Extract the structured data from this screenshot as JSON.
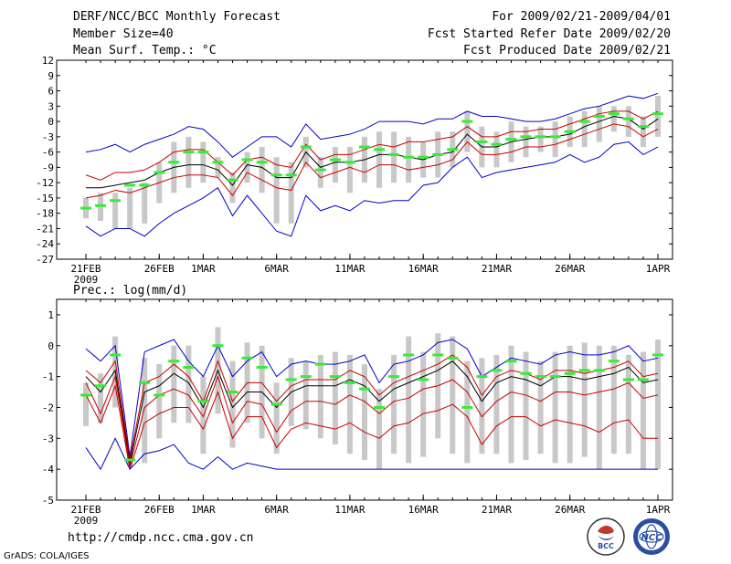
{
  "header": {
    "title": "DERF/NCC/BCC Monthly Forecast",
    "member_size": "Member Size=40",
    "variable": "Mean Surf. Temp.: °C",
    "forecast_period": "For 2009/02/21-2009/04/01",
    "start_date": "Fcst Started Refer Date 2009/02/20",
    "produced_date": "Fcst Produced Date 2009/02/21"
  },
  "footer": {
    "url": "http://cmdp.ncc.cma.gov.cn",
    "grads_credit": "GrADS: COLA/IGES",
    "logo_bcc": "BCC",
    "logo_ncc": "NCC"
  },
  "colors": {
    "ensemble_bar": "#c8c8c8",
    "max_min": "#0000cc",
    "spread": "#cc0000",
    "mean": "#000000",
    "median": "#33ee33"
  },
  "chart_data": [
    {
      "type": "line",
      "name": "Mean Surface Temperature",
      "ylabel": "Mean Surf. Temp.: °C",
      "ylim": [
        -27,
        12
      ],
      "yticks": [
        12,
        9,
        6,
        3,
        0,
        -3,
        -6,
        -9,
        -12,
        -15,
        -18,
        -21,
        -24,
        -27
      ],
      "xticks": [
        {
          "day": 0,
          "label": "21FEB",
          "sublabel": "2009"
        },
        {
          "day": 5,
          "label": "26FEB"
        },
        {
          "day": 8,
          "label": "1MAR"
        },
        {
          "day": 13,
          "label": "6MAR"
        },
        {
          "day": 18,
          "label": "11MAR"
        },
        {
          "day": 23,
          "label": "16MAR"
        },
        {
          "day": 28,
          "label": "21MAR"
        },
        {
          "day": 33,
          "label": "26MAR"
        },
        {
          "day": 39,
          "label": "1APR"
        }
      ],
      "days": 40,
      "series": [
        {
          "name": "max",
          "values": [
            -6,
            -5.5,
            -4.5,
            -6,
            -4.5,
            -3.5,
            -2.5,
            -1,
            -1.5,
            -4,
            -7,
            -5,
            -3,
            -3,
            -5,
            -0.5,
            -3.5,
            -3,
            -2.5,
            -1.5,
            0,
            0,
            0,
            -0.5,
            0.5,
            0.5,
            2,
            1,
            1,
            0.5,
            0,
            0,
            0.5,
            1.5,
            2.5,
            3,
            4,
            5,
            4.5,
            5.5,
            6.5
          ]
        },
        {
          "name": "upper",
          "values": [
            -10.5,
            -11.5,
            -10,
            -10,
            -9.5,
            -8,
            -6,
            -5.5,
            -5.5,
            -8,
            -10.5,
            -7.5,
            -7,
            -8.5,
            -9,
            -4.5,
            -7.5,
            -6.5,
            -6.5,
            -5.5,
            -4.5,
            -5,
            -4,
            -4,
            -3.5,
            -3,
            -1,
            -3,
            -3,
            -2,
            -2,
            -1.5,
            -1.5,
            -0.5,
            0.5,
            1.5,
            2,
            2,
            0.5,
            2,
            3
          ]
        },
        {
          "name": "mean",
          "values": [
            -13,
            -13,
            -12.5,
            -12,
            -11.5,
            -10,
            -9,
            -8.5,
            -8.5,
            -9.5,
            -12.5,
            -8.5,
            -9,
            -11,
            -11,
            -6,
            -9,
            -8,
            -8,
            -7.5,
            -6.5,
            -6.5,
            -7,
            -7.5,
            -6.5,
            -6,
            -2.5,
            -5,
            -5,
            -4,
            -3.5,
            -3,
            -3,
            -2.5,
            -1,
            0,
            1,
            0.5,
            -1.5,
            0.5,
            1.5
          ]
        },
        {
          "name": "lower",
          "values": [
            -15,
            -14.5,
            -13.5,
            -14,
            -13,
            -12,
            -11,
            -10.5,
            -10.5,
            -11,
            -14.5,
            -10,
            -11.5,
            -13,
            -13.5,
            -8,
            -11,
            -10,
            -9,
            -10,
            -8.5,
            -8.5,
            -9.5,
            -9,
            -8.5,
            -7.5,
            -4,
            -6.5,
            -6.5,
            -6,
            -5,
            -5,
            -4.5,
            -3.5,
            -2.5,
            -1.5,
            -0.5,
            -1,
            -3,
            -1.5,
            -0.5
          ]
        },
        {
          "name": "min",
          "values": [
            -20.5,
            -22.5,
            -21,
            -21,
            -22.5,
            -20,
            -18,
            -16.5,
            -15,
            -13,
            -18.5,
            -14.5,
            -18,
            -21.5,
            -22.5,
            -14.5,
            -17.5,
            -16.5,
            -17.5,
            -15.5,
            -16,
            -15.5,
            -15.5,
            -12.5,
            -12,
            -9,
            -7,
            -11,
            -10,
            -9.5,
            -9,
            -8.5,
            -8,
            -6.5,
            -8,
            -7,
            -4.5,
            -4,
            -6.5,
            -5,
            -5
          ]
        },
        {
          "name": "median",
          "values": [
            -17,
            -16.5,
            -15.5,
            -12.5,
            -12.5,
            -10,
            -8,
            -6,
            -6,
            -8,
            -11.5,
            -7.5,
            -8,
            -10.5,
            -10.5,
            -5,
            -9.5,
            -7.5,
            -8,
            -5,
            -5.5,
            -6.5,
            -7,
            -7,
            -6.5,
            -5.5,
            0,
            -4,
            -4.5,
            -3.5,
            -3,
            -3,
            -3,
            -2,
            0,
            1,
            1.5,
            0.5,
            -1,
            1.5,
            3
          ]
        }
      ],
      "box_low": [
        -19,
        -19.5,
        -21,
        -21,
        -20,
        -16,
        -14,
        -13,
        -12,
        -11,
        -16,
        -12,
        -14,
        -20,
        -20,
        -9,
        -13,
        -12,
        -14,
        -12,
        -13,
        -12,
        -12,
        -11,
        -11,
        -9,
        -6,
        -9,
        -9,
        -8,
        -7,
        -6,
        -7,
        -5,
        -5,
        -4,
        -2,
        -3,
        -5,
        -3,
        -3
      ],
      "box_high": [
        -15,
        -14,
        -14,
        -13,
        -12,
        -8,
        -4,
        -3,
        -4,
        -7,
        -10,
        -6,
        -5,
        -7,
        -8,
        -3,
        -7,
        -5,
        -5,
        -3,
        -2,
        -2,
        -3,
        -4,
        -2,
        -2,
        2,
        -1,
        -2,
        0,
        -1,
        -1,
        0,
        1,
        2,
        3,
        3,
        3,
        1,
        5,
        6
      ]
    },
    {
      "type": "line",
      "name": "Precipitation",
      "ylabel": "Prec.: log(mm/d)",
      "ylim": [
        -5,
        1.5
      ],
      "yticks": [
        1,
        0,
        -1,
        -2,
        -3,
        -4,
        -5
      ],
      "xticks": [
        {
          "day": 0,
          "label": "21FEB",
          "sublabel": "2009"
        },
        {
          "day": 5,
          "label": "26FEB"
        },
        {
          "day": 8,
          "label": "1MAR"
        },
        {
          "day": 13,
          "label": "6MAR"
        },
        {
          "day": 18,
          "label": "11MAR"
        },
        {
          "day": 23,
          "label": "16MAR"
        },
        {
          "day": 28,
          "label": "21MAR"
        },
        {
          "day": 33,
          "label": "26MAR"
        },
        {
          "day": 39,
          "label": "1APR"
        }
      ],
      "days": 40,
      "series": [
        {
          "name": "max",
          "values": [
            -0.1,
            -0.5,
            0,
            -3.6,
            -0.2,
            0,
            0.2,
            -0.5,
            -1,
            0,
            -1,
            -0.5,
            -0.2,
            -1,
            -0.6,
            -0.5,
            -0.6,
            -0.6,
            -0.5,
            -0.3,
            -1.2,
            -0.6,
            -0.5,
            -0.3,
            0.1,
            0.2,
            -0.1,
            -1,
            -0.7,
            -0.4,
            -0.5,
            -0.6,
            -0.3,
            -0.2,
            -0.3,
            -0.3,
            -0.2,
            0,
            -0.5,
            -0.4,
            0.3
          ]
        },
        {
          "name": "upper",
          "values": [
            -0.8,
            -1.2,
            -0.5,
            -3.7,
            -1.2,
            -1,
            -0.6,
            -1,
            -1.8,
            -0.5,
            -1.8,
            -1.2,
            -1.2,
            -1.8,
            -1.3,
            -1.1,
            -1.1,
            -1.1,
            -0.8,
            -1,
            -1.6,
            -1.2,
            -1,
            -0.8,
            -0.6,
            -0.3,
            -0.7,
            -1.6,
            -1,
            -0.8,
            -0.9,
            -1.1,
            -0.8,
            -0.8,
            -0.9,
            -0.8,
            -0.7,
            -0.5,
            -1,
            -0.9,
            -0.1
          ]
        },
        {
          "name": "mean",
          "values": [
            -1,
            -1.5,
            -0.8,
            -3.8,
            -1.5,
            -1.3,
            -0.9,
            -1.2,
            -2,
            -0.8,
            -2,
            -1.5,
            -1.5,
            -2,
            -1.5,
            -1.3,
            -1.3,
            -1.3,
            -1.1,
            -1.3,
            -1.8,
            -1.4,
            -1.2,
            -1,
            -0.8,
            -0.5,
            -1,
            -1.8,
            -1.2,
            -1,
            -1.1,
            -1.3,
            -1,
            -1,
            -1.1,
            -1,
            -0.9,
            -0.7,
            -1.2,
            -1.1,
            -0.4
          ]
        },
        {
          "name": "lower",
          "values": [
            -1.2,
            -2.2,
            -1,
            -3.9,
            -2,
            -1.6,
            -1.4,
            -1.6,
            -2.3,
            -1,
            -2.5,
            -1.8,
            -1.9,
            -2.8,
            -2.1,
            -1.8,
            -1.8,
            -1.9,
            -1.6,
            -1.8,
            -2.2,
            -1.8,
            -1.7,
            -1.4,
            -1.3,
            -1.1,
            -1.5,
            -2.3,
            -1.8,
            -1.5,
            -1.6,
            -1.8,
            -1.5,
            -1.5,
            -1.6,
            -1.5,
            -1.4,
            -1.2,
            -1.7,
            -1.6,
            -0.9
          ]
        },
        {
          "name": "lower2",
          "values": [
            -1.6,
            -2.5,
            -1.3,
            -4,
            -2.5,
            -2.2,
            -2,
            -2,
            -2.7,
            -1.5,
            -3,
            -2.3,
            -2.3,
            -3.3,
            -2.7,
            -2.5,
            -2.6,
            -2.7,
            -2.5,
            -2.8,
            -3,
            -2.6,
            -2.5,
            -2.2,
            -2.1,
            -1.9,
            -2.3,
            -3.2,
            -2.6,
            -2.3,
            -2.3,
            -2.6,
            -2.4,
            -2.5,
            -2.6,
            -2.8,
            -2.5,
            -2.4,
            -3,
            -3,
            -2.4
          ]
        },
        {
          "name": "min",
          "values": [
            -3.3,
            -4,
            -3,
            -4,
            -3.5,
            -3.4,
            -3.2,
            -3.8,
            -4,
            -3.6,
            -4,
            -3.8,
            -3.9,
            -4,
            -4,
            -4,
            -4,
            -4,
            -4,
            -4,
            -4,
            -4,
            -4,
            -4,
            -4,
            -4,
            -4,
            -4,
            -4,
            -4,
            -4,
            -4,
            -4,
            -4,
            -4,
            -4,
            -4,
            -4,
            -4,
            -4,
            -4
          ]
        },
        {
          "name": "median",
          "values": [
            -1.6,
            -1.3,
            -0.3,
            -3.7,
            -1.2,
            -1.6,
            -0.5,
            -0.7,
            -1.8,
            0,
            -1.5,
            -0.4,
            -0.7,
            -1.9,
            -1.1,
            -1,
            -0.6,
            -1,
            -1.2,
            -1.4,
            -2,
            -1,
            -0.3,
            -1.1,
            -0.3,
            -0.4,
            -2,
            -1,
            -0.8,
            -0.5,
            -0.9,
            -1,
            -1,
            -0.9,
            -0.8,
            -0.8,
            -0.5,
            -1.1,
            -1.1,
            -0.3,
            -0.3
          ]
        }
      ],
      "box_low": [
        -2.6,
        -2.5,
        -2,
        -3.9,
        -3.8,
        -3,
        -2.5,
        -2.5,
        -3.5,
        -2.2,
        -3.3,
        -2.5,
        -3,
        -3.5,
        -2.6,
        -2.7,
        -3,
        -3.2,
        -3.5,
        -3.7,
        -4,
        -3.5,
        -3.8,
        -3.6,
        -3,
        -3.5,
        -3.8,
        -3.5,
        -3.5,
        -3.8,
        -3.7,
        -3.5,
        -3.8,
        -3.8,
        -3.6,
        -4,
        -3.5,
        -3.5,
        -4,
        -4,
        -3.5
      ],
      "box_high": [
        -1.2,
        -0.9,
        0.3,
        -3.4,
        -0.4,
        -0.6,
        0,
        0,
        -1,
        0.6,
        -0.5,
        0.1,
        0,
        -1.2,
        -0.4,
        -0.5,
        -0.3,
        -0.2,
        -0.3,
        -0.6,
        -1.4,
        -0.3,
        0.3,
        -0.2,
        0.4,
        0.3,
        -0.5,
        -0.4,
        -0.3,
        0,
        -0.2,
        -0.5,
        -0.2,
        0,
        0.1,
        0,
        0,
        -0.3,
        -0.2,
        0.2,
        0.3
      ]
    }
  ]
}
